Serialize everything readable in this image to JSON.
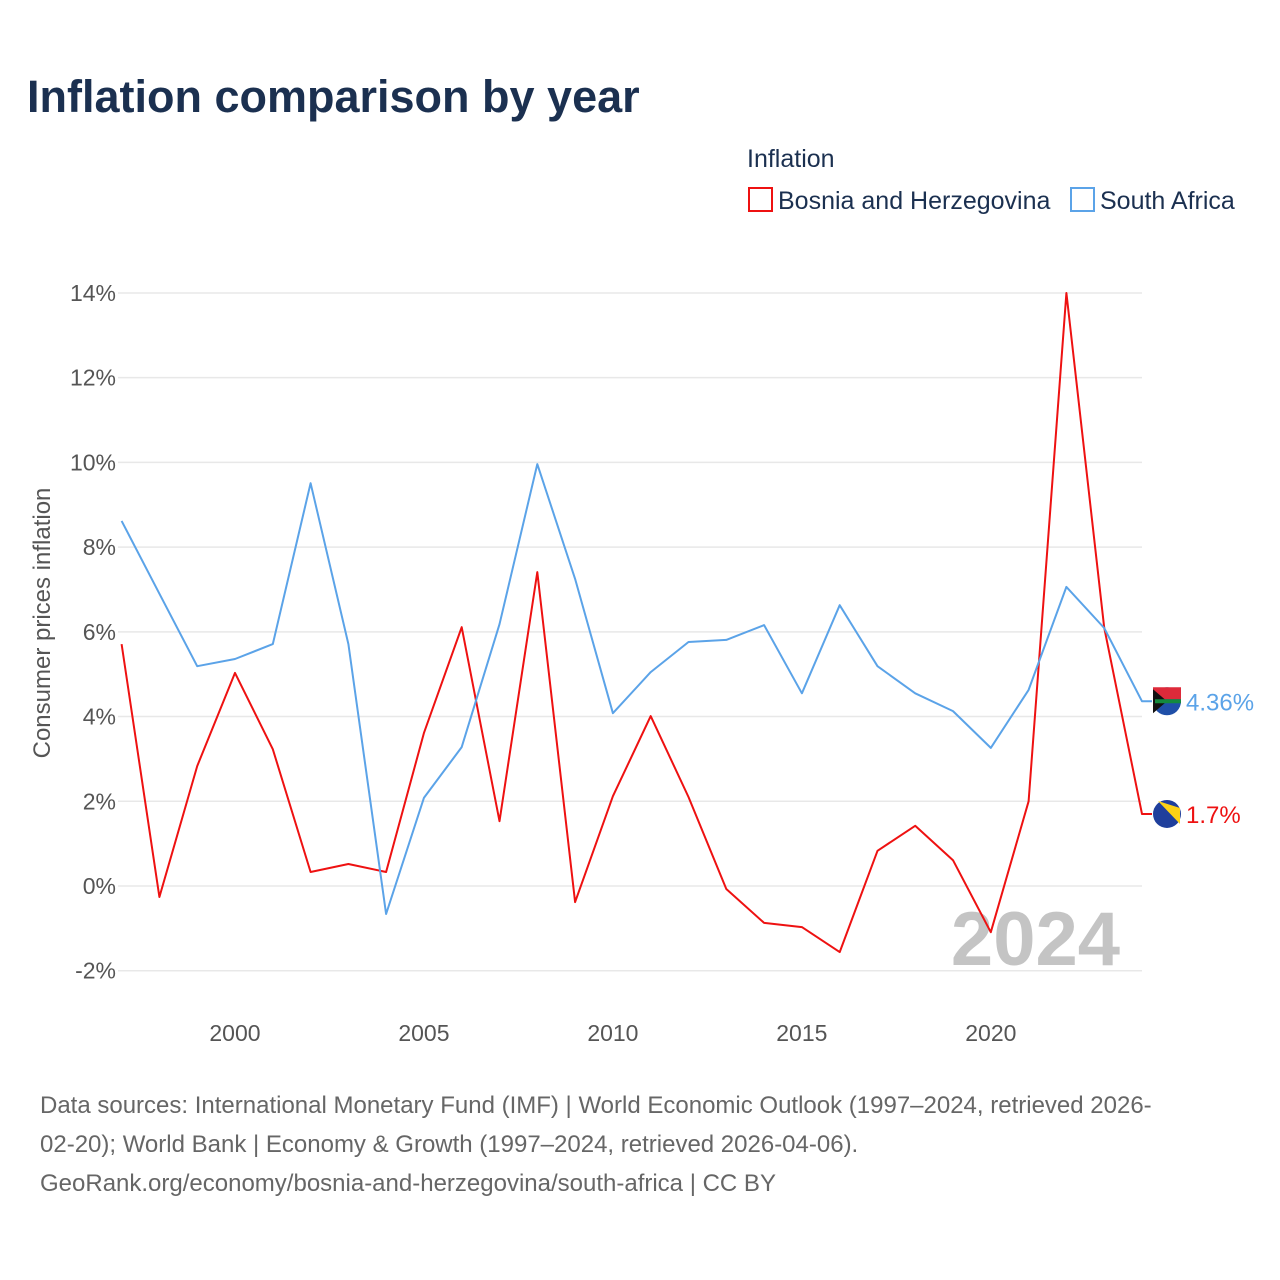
{
  "chart_data": {
    "type": "line",
    "title": "Inflation comparison by year",
    "legend_title": "Inflation",
    "legend_placement": "top-right",
    "ylabel": "Consumer prices inflation",
    "xlabel": "",
    "ylim": [
      -2,
      14
    ],
    "xlim": [
      1997,
      2024
    ],
    "yticks": [
      -2,
      0,
      2,
      4,
      6,
      8,
      10,
      12,
      14
    ],
    "ytick_labels": [
      "-2%",
      "0%",
      "2%",
      "4%",
      "6%",
      "8%",
      "10%",
      "12%",
      "14%"
    ],
    "xticks": [
      2000,
      2005,
      2010,
      2015,
      2020
    ],
    "xtick_labels": [
      "2000",
      "2005",
      "2010",
      "2015",
      "2020"
    ],
    "grid": true,
    "watermark_year": "2024",
    "x": [
      1997,
      1998,
      1999,
      2000,
      2001,
      2002,
      2003,
      2004,
      2005,
      2006,
      2007,
      2008,
      2009,
      2010,
      2011,
      2012,
      2013,
      2014,
      2015,
      2016,
      2017,
      2018,
      2019,
      2020,
      2021,
      2022,
      2023,
      2024
    ],
    "series": [
      {
        "name": "Bosnia and Herzegovina",
        "color": "#ee1111",
        "end_label": "1.7%",
        "values": [
          5.71,
          -0.26,
          2.83,
          5.03,
          3.23,
          0.33,
          0.52,
          0.33,
          3.61,
          6.11,
          1.53,
          7.41,
          -0.38,
          2.12,
          4.01,
          2.1,
          -0.07,
          -0.87,
          -0.97,
          -1.56,
          0.83,
          1.42,
          0.61,
          -1.09,
          2.0,
          14.0,
          6.1,
          1.7
        ]
      },
      {
        "name": "South Africa",
        "color": "#5ba3e8",
        "end_label": "4.36%",
        "values": [
          8.62,
          6.9,
          5.19,
          5.36,
          5.71,
          9.51,
          5.71,
          -0.66,
          2.08,
          3.28,
          6.18,
          9.96,
          7.25,
          4.08,
          5.05,
          5.76,
          5.81,
          6.16,
          4.55,
          6.63,
          5.19,
          4.55,
          4.13,
          3.26,
          4.63,
          7.06,
          6.09,
          4.36
        ]
      }
    ]
  },
  "footer": {
    "line1": "Data sources: International Monetary Fund (IMF) | World Economic Outlook (1997–2024, retrieved 2026-",
    "line2": "02-20); World Bank | Economy & Growth (1997–2024, retrieved 2026-04-06).",
    "line3": "GeoRank.org/economy/bosnia-and-herzegovina/south-africa | CC BY"
  }
}
